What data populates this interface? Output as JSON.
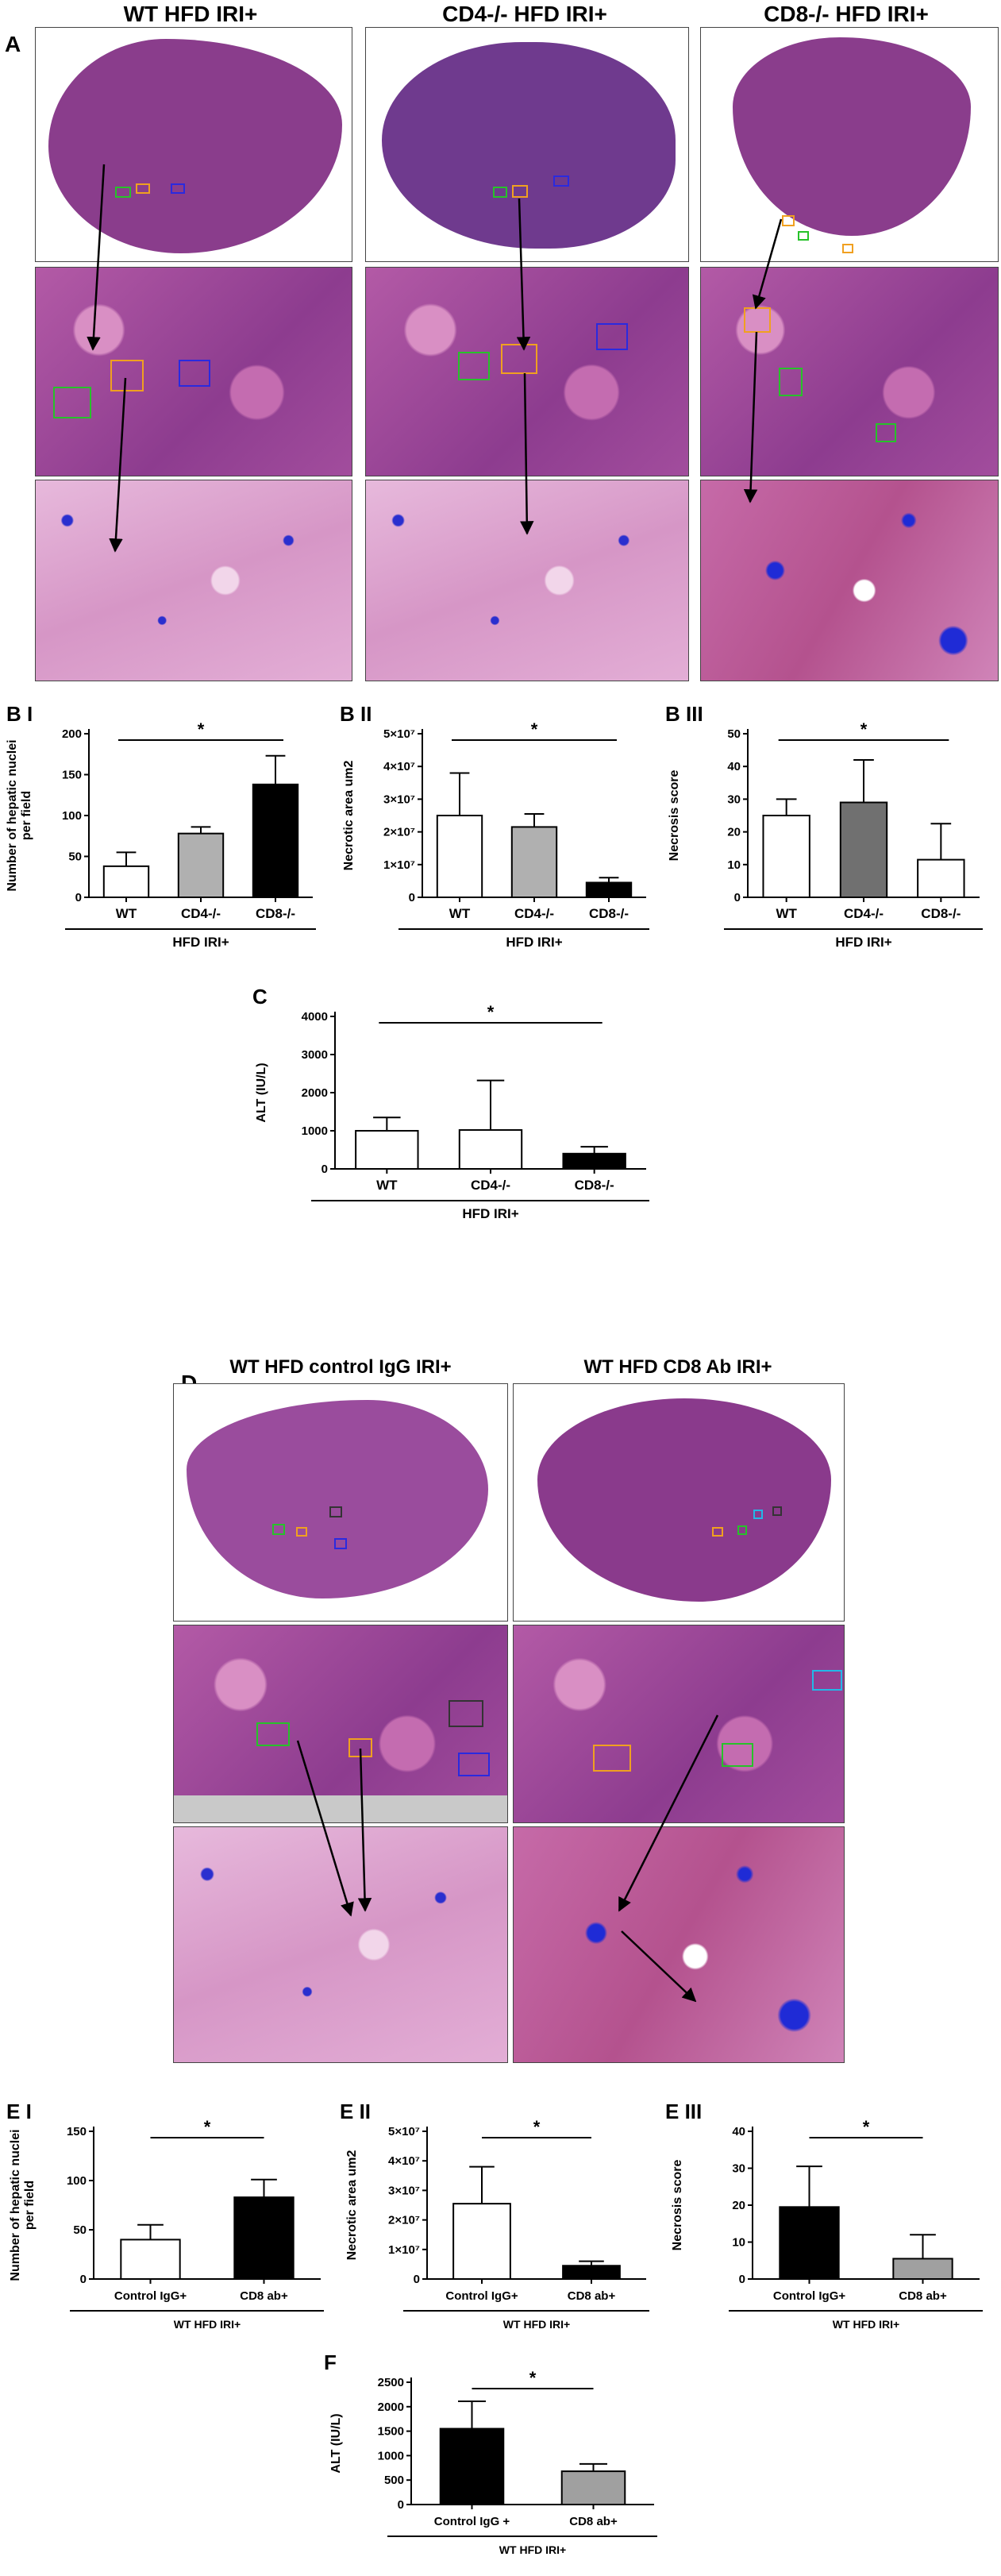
{
  "panel_a": {
    "letter": "A",
    "columns": [
      "WT HFD IRI+",
      "CD4-/- HFD IRI+",
      "CD8-/- HFD IRI+"
    ]
  },
  "panel_d": {
    "letter": "D",
    "columns": [
      "WT HFD control IgG IRI+",
      "WT HFD CD8 Ab IRI+"
    ]
  },
  "colors": {
    "roi_green": "#27c22a",
    "roi_orange": "#f0a020",
    "roi_blue": "#2a2adf",
    "roi_black": "#333333",
    "roi_cyan": "#22b8e8",
    "tissue": "#8a3d8c"
  },
  "chart_data": [
    {
      "id": "BI",
      "panel": "B I",
      "type": "bar",
      "categories": [
        "WT",
        "CD4-/-",
        "CD8-/-"
      ],
      "values": [
        38,
        78,
        138
      ],
      "errors": [
        17,
        8,
        35
      ],
      "ylabel": "Number of hepatic nuclei per field",
      "ylim": [
        0,
        200
      ],
      "yticks": [
        "0",
        "50",
        "100",
        "150",
        "200"
      ],
      "group_label": "HFD IRI+",
      "sig": "*",
      "fills": [
        "#ffffff",
        "#b0b0b0",
        "#000000"
      ]
    },
    {
      "id": "BII",
      "panel": "B II",
      "type": "bar",
      "categories": [
        "WT",
        "CD4-/-",
        "CD8-/-"
      ],
      "values": [
        25000000,
        21500000,
        4500000
      ],
      "errors": [
        13000000,
        4000000,
        1500000
      ],
      "ylabel": "Necrotic area um2",
      "ylim": [
        0,
        50000000
      ],
      "yticks": [
        "0",
        "1×10⁷",
        "2×10⁷",
        "3×10⁷",
        "4×10⁷",
        "5×10⁷"
      ],
      "group_label": "HFD IRI+",
      "sig": "*",
      "fills": [
        "#ffffff",
        "#b0b0b0",
        "#000000"
      ]
    },
    {
      "id": "BIII",
      "panel": "B III",
      "type": "bar",
      "categories": [
        "WT",
        "CD4-/-",
        "CD8-/-"
      ],
      "values": [
        25,
        29,
        11.5
      ],
      "errors": [
        5,
        13,
        11
      ],
      "ylabel": "Necrosis score",
      "ylim": [
        0,
        50
      ],
      "yticks": [
        "0",
        "10",
        "20",
        "30",
        "40",
        "50"
      ],
      "group_label": "HFD IRI+",
      "sig": "*",
      "fills": [
        "#ffffff",
        "#707070",
        "#ffffff"
      ]
    },
    {
      "id": "C",
      "panel": "C",
      "type": "bar",
      "categories": [
        "WT",
        "CD4-/-",
        "CD8-/-"
      ],
      "values": [
        1000,
        1020,
        400
      ],
      "errors": [
        350,
        1300,
        180
      ],
      "ylabel": "ALT (IU/L)",
      "ylim": [
        0,
        4000
      ],
      "yticks": [
        "0",
        "1000",
        "2000",
        "3000",
        "4000"
      ],
      "group_label": "HFD IRI+",
      "sig": "*",
      "fills": [
        "#ffffff",
        "#ffffff",
        "#000000"
      ]
    },
    {
      "id": "EI",
      "panel": "E I",
      "type": "bar",
      "categories": [
        "Control IgG+",
        "CD8 ab+"
      ],
      "values": [
        40,
        83
      ],
      "errors": [
        15,
        18
      ],
      "ylabel": "Number of hepatic nuclei per field",
      "ylim": [
        0,
        150
      ],
      "yticks": [
        "0",
        "50",
        "100",
        "150"
      ],
      "group_label": "WT HFD IRI+",
      "sig": "*",
      "fills": [
        "#ffffff",
        "#000000"
      ]
    },
    {
      "id": "EII",
      "panel": "E II",
      "type": "bar",
      "categories": [
        "Control IgG+",
        "CD8 ab+"
      ],
      "values": [
        25500000,
        4500000
      ],
      "errors": [
        12500000,
        1500000
      ],
      "ylabel": "Necrotic area um2",
      "ylim": [
        0,
        50000000
      ],
      "yticks": [
        "0",
        "1×10⁷",
        "2×10⁷",
        "3×10⁷",
        "4×10⁷",
        "5×10⁷"
      ],
      "group_label": "WT HFD IRI+",
      "sig": "*",
      "fills": [
        "#ffffff",
        "#000000"
      ]
    },
    {
      "id": "EIII",
      "panel": "E III",
      "type": "bar",
      "categories": [
        "Control IgG+",
        "CD8 ab+"
      ],
      "values": [
        19.5,
        5.5
      ],
      "errors": [
        11,
        6.5
      ],
      "ylabel": "Necrosis score",
      "ylim": [
        0,
        40
      ],
      "yticks": [
        "0",
        "10",
        "20",
        "30",
        "40"
      ],
      "group_label": "WT HFD IRI+",
      "sig": "*",
      "fills": [
        "#000000",
        "#a0a0a0"
      ]
    },
    {
      "id": "F",
      "panel": "F",
      "type": "bar",
      "categories": [
        "Control IgG +",
        "CD8 ab+"
      ],
      "values": [
        1550,
        680
      ],
      "errors": [
        560,
        150
      ],
      "ylabel": "ALT (IU/L)",
      "ylim": [
        0,
        2500
      ],
      "yticks": [
        "0",
        "500",
        "1000",
        "1500",
        "2000",
        "2500"
      ],
      "group_label": "WT HFD IRI+",
      "sig": "*",
      "fills": [
        "#000000",
        "#a0a0a0"
      ]
    }
  ]
}
